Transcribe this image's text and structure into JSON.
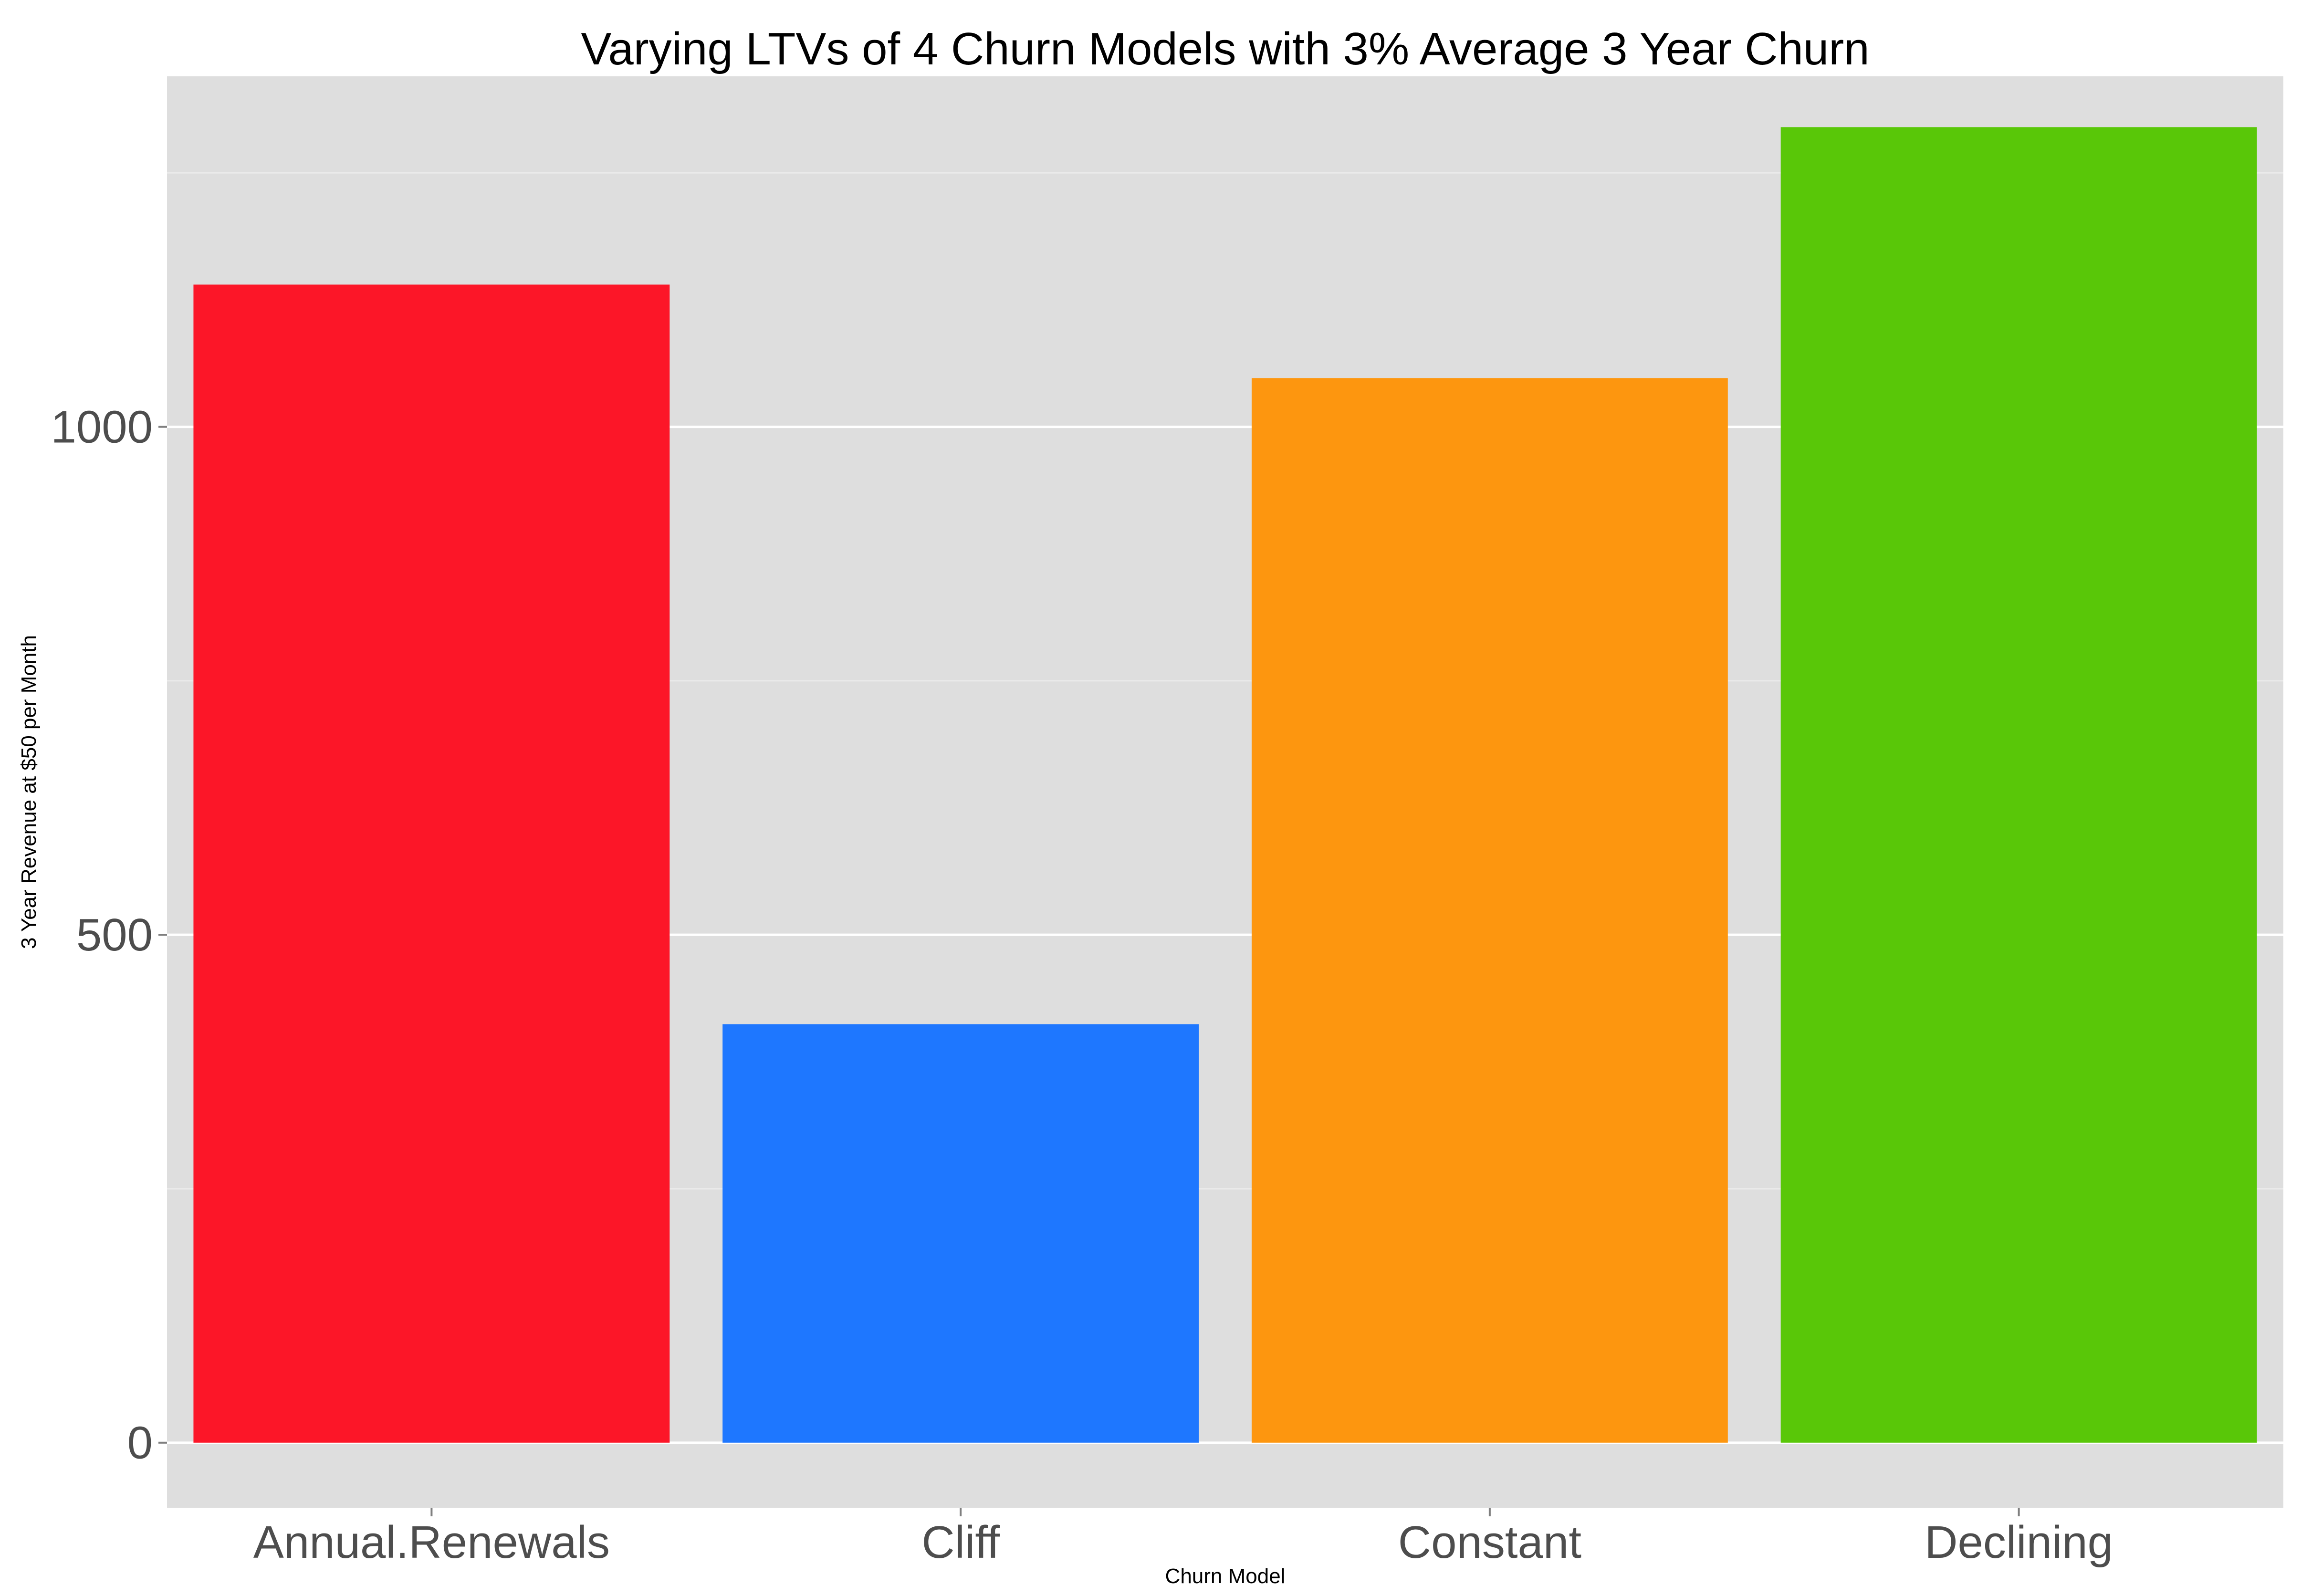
{
  "chart_data": {
    "type": "bar",
    "title": "Varying LTVs of 4 Churn Models with 3% Average 3 Year Churn",
    "xlabel": "Churn Model",
    "ylabel": "3 Year Revenue at $50 per Month",
    "categories": [
      "Annual.Renewals",
      "Cliff",
      "Constant",
      "Declining"
    ],
    "values": [
      1140,
      412,
      1048,
      1295
    ],
    "colors": [
      "#fc1628",
      "#1e77ff",
      "#fd960f",
      "#59c708"
    ],
    "ylim": [
      -64,
      1345
    ],
    "yticks": [
      0,
      500,
      1000
    ],
    "ytick_labels": [
      "0",
      "500",
      "1000"
    ],
    "minor_gridlines": [
      250,
      750,
      1250
    ],
    "background": "#dedede",
    "grid": true,
    "legend": "none"
  }
}
